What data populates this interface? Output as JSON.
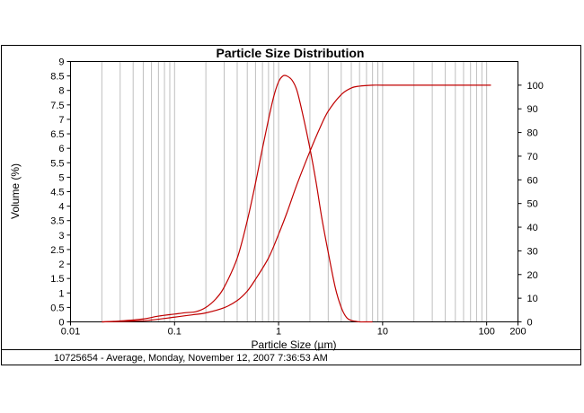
{
  "chart_data": {
    "type": "line",
    "title": "Particle Size Distribution",
    "xlabel": "Particle Size (µm)",
    "ylabel": "Volume (%)",
    "x_scale": "log",
    "xlim": [
      0.01,
      200
    ],
    "ylim": [
      0,
      9
    ],
    "y2lim": [
      0,
      110
    ],
    "grid": true,
    "series_color": "#c00000",
    "x_ticks": [
      "0.01",
      "0.1",
      "1",
      "10",
      "100",
      "200"
    ],
    "x_tick_values": [
      0.01,
      0.1,
      1,
      10,
      100,
      200
    ],
    "y_ticks": [
      "0",
      "0.5",
      "1",
      "1.5",
      "2",
      "2.5",
      "3",
      "3.5",
      "4",
      "4.5",
      "5",
      "5.5",
      "6",
      "6.5",
      "7",
      "7.5",
      "8",
      "8.5",
      "9"
    ],
    "y2_ticks": [
      "0",
      "10",
      "20",
      "30",
      "40",
      "50",
      "60",
      "70",
      "80",
      "90",
      "100"
    ],
    "series": [
      {
        "axis": "left",
        "x": [
          0.02,
          0.03,
          0.05,
          0.07,
          0.1,
          0.13,
          0.16,
          0.2,
          0.25,
          0.3,
          0.4,
          0.5,
          0.6,
          0.7,
          0.8,
          0.9,
          1.0,
          1.1,
          1.2,
          1.35,
          1.5,
          1.7,
          2.0,
          2.3,
          2.6,
          3.0,
          3.5,
          4.0,
          4.5,
          5.0,
          5.5,
          6.0,
          7.0,
          8.0
        ],
        "values": [
          0.0,
          0.03,
          0.1,
          0.2,
          0.27,
          0.32,
          0.35,
          0.5,
          0.8,
          1.2,
          2.2,
          3.5,
          4.8,
          6.0,
          7.0,
          7.8,
          8.3,
          8.5,
          8.5,
          8.35,
          8.0,
          7.2,
          6.0,
          4.8,
          3.6,
          2.4,
          1.2,
          0.5,
          0.15,
          0.05,
          0.02,
          0.0,
          0.0,
          0.0
        ]
      },
      {
        "axis": "right",
        "x": [
          0.02,
          0.05,
          0.1,
          0.15,
          0.2,
          0.3,
          0.4,
          0.5,
          0.6,
          0.8,
          1.0,
          1.2,
          1.5,
          2.0,
          2.5,
          3.0,
          4.0,
          5.0,
          6.0,
          8.0,
          10,
          20,
          50,
          110
        ],
        "values": [
          0.0,
          0.5,
          2.0,
          3.0,
          3.8,
          6.0,
          9.0,
          13.0,
          18.0,
          27.0,
          37.0,
          46.0,
          58.0,
          72.0,
          82.0,
          89.0,
          96.0,
          98.8,
          99.6,
          100,
          100,
          100,
          100,
          100
        ]
      }
    ]
  },
  "footer": {
    "text": "10725654 - Average, Monday, November 12, 2007 7:36:53 AM"
  }
}
